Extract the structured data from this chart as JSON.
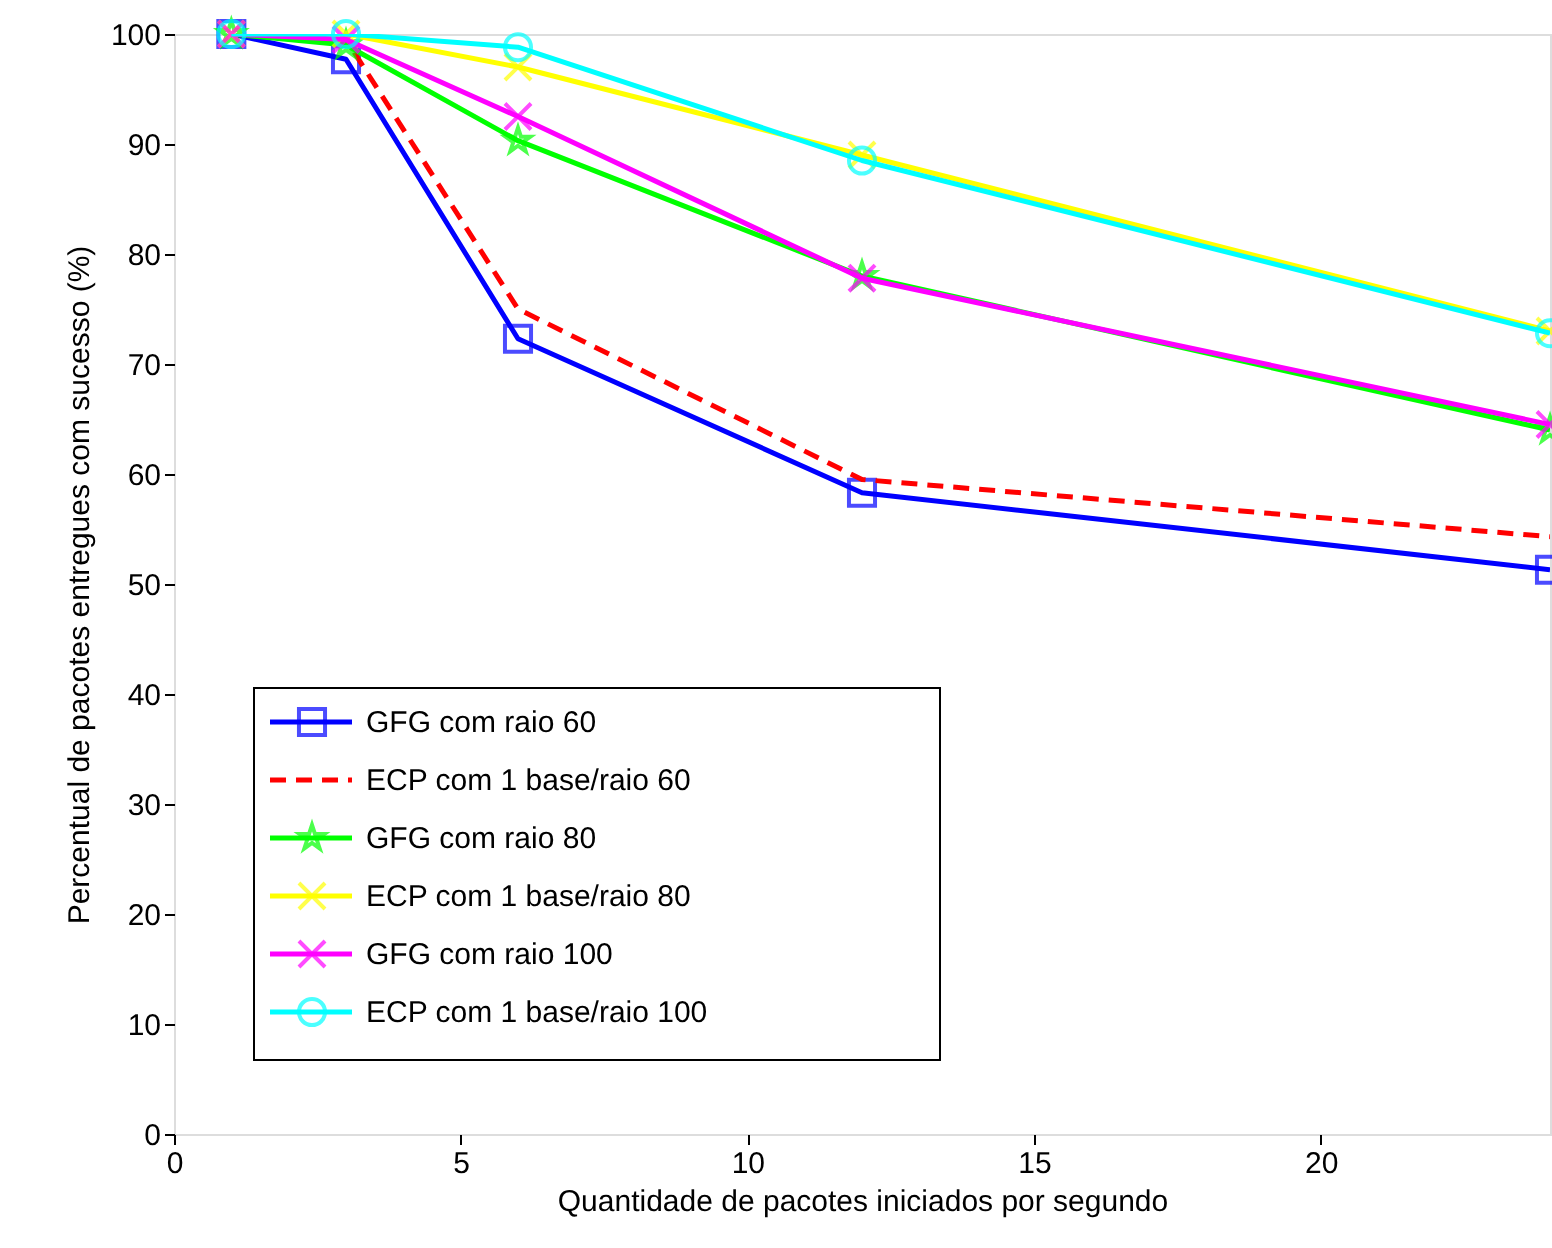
{
  "chart_data": {
    "type": "line",
    "xlabel": "Quantidade de pacotes iniciados por segundo",
    "ylabel": "Percentual de pacotes entregues com sucesso (%)",
    "x": [
      1,
      3,
      6,
      12,
      24
    ],
    "series": [
      {
        "name": "GFG com raio 60",
        "color": "#0000ff",
        "values": [
          100,
          97.7,
          72.3,
          58.3,
          51.3
        ],
        "marker": "square",
        "line_style": "solid"
      },
      {
        "name": "ECP com 1 base/raio 60",
        "color": "#ff0000",
        "values": [
          100,
          99.5,
          75,
          59.5,
          54.3
        ],
        "marker": "none",
        "line_style": "dashed"
      },
      {
        "name": "GFG com raio 80",
        "color": "#00ff00",
        "values": [
          100,
          99,
          90.3,
          78,
          64
        ],
        "marker": "star",
        "line_style": "solid"
      },
      {
        "name": "ECP com 1 base/raio 80",
        "color": "#ffff00",
        "values": [
          100,
          100,
          97,
          89,
          73
        ],
        "marker": "cross",
        "line_style": "solid"
      },
      {
        "name": "GFG com raio 100",
        "color": "#ff00ff",
        "values": [
          100,
          99.5,
          92.5,
          77.8,
          64.5
        ],
        "marker": "cross",
        "line_style": "solid"
      },
      {
        "name": "ECP com 1 base/raio 100",
        "color": "#00ffff",
        "values": [
          100,
          100,
          98.8,
          88.5,
          72.8
        ],
        "marker": "circle",
        "line_style": "solid"
      }
    ],
    "xlim": [
      0,
      24
    ],
    "xticks": [
      0,
      5,
      10,
      15,
      20
    ],
    "ylim": [
      0,
      100
    ],
    "yticks": [
      0,
      10,
      20,
      30,
      40,
      50,
      60,
      70,
      80,
      90,
      100
    ],
    "grid": false,
    "legend": "bottom left"
  }
}
